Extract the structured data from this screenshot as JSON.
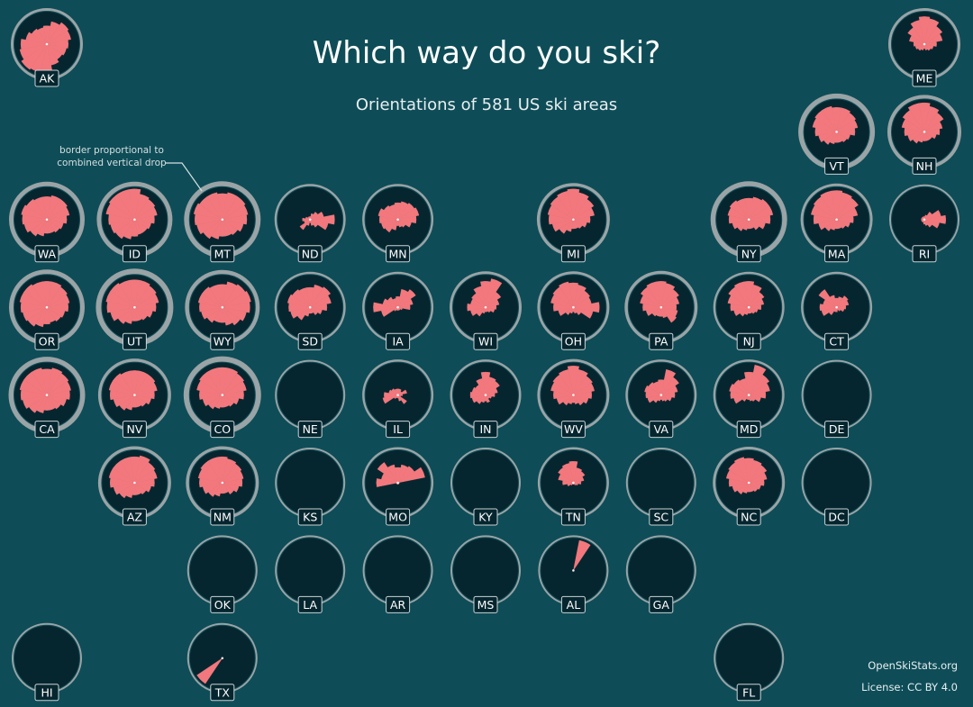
{
  "colors": {
    "background": "#0e4d57",
    "circle_fill": "#06262f",
    "rose_fill": "#f2787d",
    "border": "#9aa3a6",
    "text": "#ffffff",
    "label_box_fill": "#06262f",
    "label_box_stroke": "#c9d3d6",
    "annotation": "#d6dfe1"
  },
  "title": "Which way do you ski?",
  "subtitle": "Orientations of 581 US ski areas",
  "annotation": {
    "line1": "border proportional to",
    "line2": "combined vertical drop"
  },
  "footer": {
    "source": "OpenSkiStats.org",
    "license": "License: CC BY 4.0"
  },
  "chart_data": {
    "type": "polar-rose small multiples (tile grid map)",
    "bins": 16,
    "bin_order": "clockwise from north (N, NNE, NE, ... NNW)",
    "values_note": "relative petal length, 0-1, estimated from image",
    "states": [
      {
        "id": "AK",
        "col": 0,
        "row": 0,
        "border": 0.4,
        "rose": [
          0.6,
          0.75,
          0.85,
          0.8,
          0.7,
          0.65,
          0.6,
          0.7,
          0.85,
          0.95,
          1.0,
          0.9,
          0.85,
          0.7,
          0.6,
          0.55
        ]
      },
      {
        "id": "ME",
        "col": 10,
        "row": 0,
        "border": 0.4,
        "rose": [
          0.9,
          0.85,
          0.7,
          0.6,
          0.4,
          0.3,
          0.25,
          0.2,
          0.15,
          0.2,
          0.25,
          0.3,
          0.35,
          0.5,
          0.65,
          0.8
        ]
      },
      {
        "id": "VT",
        "col": 9,
        "row": 1,
        "border": 0.9,
        "rose": [
          0.8,
          0.8,
          0.75,
          0.7,
          0.6,
          0.45,
          0.4,
          0.35,
          0.35,
          0.4,
          0.5,
          0.6,
          0.7,
          0.8,
          0.85,
          0.85
        ]
      },
      {
        "id": "NH",
        "col": 10,
        "row": 1,
        "border": 0.6,
        "rose": [
          0.95,
          0.85,
          0.75,
          0.6,
          0.5,
          0.4,
          0.3,
          0.3,
          0.3,
          0.35,
          0.45,
          0.55,
          0.65,
          0.75,
          0.85,
          0.95
        ]
      },
      {
        "id": "WA",
        "col": 0,
        "row": 2,
        "border": 0.8,
        "rose": [
          0.75,
          0.8,
          0.8,
          0.75,
          0.65,
          0.55,
          0.5,
          0.45,
          0.45,
          0.55,
          0.65,
          0.75,
          0.8,
          0.85,
          0.8,
          0.75
        ]
      },
      {
        "id": "ID",
        "col": 1,
        "row": 2,
        "border": 0.8,
        "rose": [
          1.0,
          0.85,
          0.8,
          0.75,
          0.65,
          0.55,
          0.5,
          0.5,
          0.55,
          0.65,
          0.75,
          0.8,
          0.85,
          0.95,
          1.0,
          1.0
        ]
      },
      {
        "id": "MT",
        "col": 2,
        "row": 2,
        "border": 0.9,
        "rose": [
          0.85,
          0.9,
          0.9,
          0.85,
          0.8,
          0.7,
          0.6,
          0.55,
          0.55,
          0.65,
          0.75,
          0.85,
          0.9,
          0.95,
          0.9,
          0.9
        ]
      },
      {
        "id": "ND",
        "col": 3,
        "row": 2,
        "border": 0.3,
        "rose": [
          0.1,
          0.2,
          0.3,
          0.45,
          0.8,
          0.6,
          0.3,
          0.2,
          0.1,
          0.2,
          0.4,
          0.2,
          0.25,
          0.15,
          0.1,
          0.1
        ]
      },
      {
        "id": "MN",
        "col": 4,
        "row": 2,
        "border": 0.3,
        "rose": [
          0.55,
          0.6,
          0.65,
          0.7,
          0.6,
          0.45,
          0.3,
          0.25,
          0.2,
          0.35,
          0.5,
          0.55,
          0.6,
          0.65,
          0.55,
          0.5
        ]
      },
      {
        "id": "MI",
        "col": 6,
        "row": 2,
        "border": 0.5,
        "rose": [
          1.0,
          0.9,
          0.8,
          0.7,
          0.55,
          0.45,
          0.35,
          0.3,
          0.3,
          0.4,
          0.55,
          0.7,
          0.8,
          0.85,
          0.9,
          0.95
        ]
      },
      {
        "id": "NY",
        "col": 8,
        "row": 2,
        "border": 0.9,
        "rose": [
          0.7,
          0.75,
          0.8,
          0.8,
          0.7,
          0.55,
          0.4,
          0.3,
          0.3,
          0.35,
          0.45,
          0.55,
          0.65,
          0.7,
          0.75,
          0.7
        ]
      },
      {
        "id": "MA",
        "col": 9,
        "row": 2,
        "border": 0.4,
        "rose": [
          0.95,
          0.9,
          0.85,
          0.7,
          0.55,
          0.45,
          0.35,
          0.3,
          0.3,
          0.35,
          0.45,
          0.6,
          0.75,
          0.85,
          0.9,
          0.95
        ]
      },
      {
        "id": "RI",
        "col": 10,
        "row": 2,
        "border": 0.2,
        "rose": [
          0.1,
          0.15,
          0.3,
          0.55,
          0.7,
          0.5,
          0.3,
          0.2,
          0.15,
          0.1,
          0.1,
          0.1,
          0.1,
          0.1,
          0.1,
          0.1
        ]
      },
      {
        "id": "OR",
        "col": 0,
        "row": 3,
        "border": 0.8,
        "rose": [
          0.85,
          0.85,
          0.8,
          0.75,
          0.7,
          0.6,
          0.55,
          0.5,
          0.55,
          0.65,
          0.75,
          0.8,
          0.85,
          0.9,
          0.9,
          0.85
        ]
      },
      {
        "id": "UT",
        "col": 1,
        "row": 3,
        "border": 1.0,
        "rose": [
          0.9,
          0.9,
          0.85,
          0.8,
          0.7,
          0.6,
          0.5,
          0.45,
          0.45,
          0.55,
          0.65,
          0.8,
          0.9,
          0.95,
          0.95,
          0.9
        ]
      },
      {
        "id": "WY",
        "col": 2,
        "row": 3,
        "border": 0.7,
        "rose": [
          0.75,
          0.85,
          0.9,
          0.95,
          0.9,
          0.8,
          0.7,
          0.6,
          0.5,
          0.5,
          0.6,
          0.7,
          0.75,
          0.8,
          0.8,
          0.75
        ]
      },
      {
        "id": "SD",
        "col": 3,
        "row": 3,
        "border": 0.3,
        "rose": [
          0.65,
          0.75,
          0.8,
          0.7,
          0.55,
          0.4,
          0.3,
          0.2,
          0.2,
          0.3,
          0.5,
          0.65,
          0.7,
          0.75,
          0.7,
          0.65
        ]
      },
      {
        "id": "IA",
        "col": 4,
        "row": 3,
        "border": 0.3,
        "rose": [
          0.35,
          0.6,
          0.7,
          0.5,
          0.4,
          0.15,
          0.1,
          0.1,
          0.1,
          0.1,
          0.15,
          0.55,
          0.8,
          0.5,
          0.4,
          0.3
        ]
      },
      {
        "id": "WI",
        "col": 5,
        "row": 3,
        "border": 0.4,
        "rose": [
          0.85,
          0.95,
          0.6,
          0.45,
          0.35,
          0.3,
          0.2,
          0.15,
          0.15,
          0.2,
          0.35,
          0.5,
          0.6,
          0.5,
          0.55,
          0.7
        ]
      },
      {
        "id": "OH",
        "col": 6,
        "row": 3,
        "border": 0.4,
        "rose": [
          0.8,
          0.75,
          0.65,
          0.6,
          0.85,
          0.65,
          0.3,
          0.2,
          0.15,
          0.2,
          0.3,
          0.5,
          0.65,
          0.75,
          0.8,
          0.85
        ]
      },
      {
        "id": "PA",
        "col": 7,
        "row": 3,
        "border": 0.5,
        "rose": [
          0.85,
          0.8,
          0.7,
          0.6,
          0.5,
          0.55,
          0.6,
          0.35,
          0.3,
          0.3,
          0.35,
          0.5,
          0.6,
          0.7,
          0.8,
          0.85
        ]
      },
      {
        "id": "NJ",
        "col": 8,
        "row": 3,
        "border": 0.3,
        "rose": [
          0.85,
          0.75,
          0.6,
          0.5,
          0.4,
          0.3,
          0.25,
          0.2,
          0.2,
          0.25,
          0.35,
          0.5,
          0.6,
          0.7,
          0.8,
          0.85
        ]
      },
      {
        "id": "CT",
        "col": 9,
        "row": 3,
        "border": 0.3,
        "rose": [
          0.3,
          0.35,
          0.45,
          0.4,
          0.3,
          0.25,
          0.15,
          0.1,
          0.15,
          0.15,
          0.3,
          0.5,
          0.55,
          0.45,
          0.7,
          0.4
        ]
      },
      {
        "id": "CA",
        "col": 0,
        "row": 4,
        "border": 0.9,
        "rose": [
          0.85,
          0.9,
          0.85,
          0.8,
          0.75,
          0.65,
          0.55,
          0.5,
          0.5,
          0.6,
          0.7,
          0.8,
          0.85,
          0.9,
          0.9,
          0.9
        ]
      },
      {
        "id": "NV",
        "col": 1,
        "row": 4,
        "border": 0.5,
        "rose": [
          0.8,
          0.8,
          0.8,
          0.75,
          0.65,
          0.55,
          0.45,
          0.4,
          0.4,
          0.5,
          0.6,
          0.7,
          0.8,
          0.85,
          0.85,
          0.8
        ]
      },
      {
        "id": "CO",
        "col": 2,
        "row": 4,
        "border": 1.0,
        "rose": [
          0.9,
          0.9,
          0.85,
          0.8,
          0.7,
          0.55,
          0.45,
          0.4,
          0.4,
          0.45,
          0.55,
          0.65,
          0.75,
          0.85,
          0.9,
          0.9
        ]
      },
      {
        "id": "NE",
        "col": 3,
        "row": 4,
        "border": 0.2,
        "rose": []
      },
      {
        "id": "IL",
        "col": 4,
        "row": 4,
        "border": 0.3,
        "rose": [
          0.2,
          0.2,
          0.15,
          0.3,
          0.15,
          0.1,
          0.35,
          0.2,
          0.1,
          0.1,
          0.15,
          0.5,
          0.45,
          0.3,
          0.25,
          0.2
        ]
      },
      {
        "id": "IN",
        "col": 5,
        "row": 4,
        "border": 0.3,
        "rose": [
          0.75,
          0.6,
          0.55,
          0.4,
          0.3,
          0.2,
          0.15,
          0.25,
          0.2,
          0.25,
          0.35,
          0.45,
          0.5,
          0.45,
          0.4,
          0.55
        ]
      },
      {
        "id": "WV",
        "col": 6,
        "row": 4,
        "border": 0.4,
        "rose": [
          0.95,
          0.85,
          0.75,
          0.7,
          0.6,
          0.5,
          0.4,
          0.3,
          0.25,
          0.3,
          0.4,
          0.55,
          0.65,
          0.75,
          0.8,
          0.85
        ]
      },
      {
        "id": "VA",
        "col": 7,
        "row": 4,
        "border": 0.3,
        "rose": [
          0.5,
          0.85,
          0.7,
          0.55,
          0.45,
          0.35,
          0.25,
          0.2,
          0.15,
          0.2,
          0.3,
          0.45,
          0.5,
          0.55,
          0.5,
          0.45
        ]
      },
      {
        "id": "MD",
        "col": 8,
        "row": 4,
        "border": 0.3,
        "rose": [
          0.75,
          1.0,
          0.8,
          0.7,
          0.55,
          0.4,
          0.25,
          0.2,
          0.15,
          0.15,
          0.25,
          0.5,
          0.6,
          0.65,
          0.6,
          0.55
        ]
      },
      {
        "id": "DE",
        "col": 9,
        "row": 4,
        "border": 0.2,
        "rose": []
      },
      {
        "id": "AZ",
        "col": 1,
        "row": 5,
        "border": 0.5,
        "rose": [
          0.85,
          0.9,
          0.8,
          0.75,
          0.65,
          0.55,
          0.45,
          0.4,
          0.4,
          0.5,
          0.6,
          0.7,
          0.8,
          0.85,
          0.85,
          0.85
        ]
      },
      {
        "id": "NM",
        "col": 2,
        "row": 5,
        "border": 0.5,
        "rose": [
          0.85,
          0.8,
          0.75,
          0.7,
          0.65,
          0.55,
          0.45,
          0.35,
          0.35,
          0.45,
          0.55,
          0.65,
          0.75,
          0.8,
          0.85,
          0.85
        ]
      },
      {
        "id": "KS",
        "col": 3,
        "row": 5,
        "border": 0.2,
        "rose": []
      },
      {
        "id": "MO",
        "col": 4,
        "row": 5,
        "border": 0.3,
        "rose": [
          0.5,
          0.6,
          0.65,
          0.9,
          0.05,
          0.05,
          0.05,
          0.05,
          0.05,
          0.05,
          0.05,
          0.05,
          0.7,
          0.55,
          0.8,
          0.6
        ]
      },
      {
        "id": "KY",
        "col": 5,
        "row": 5,
        "border": 0.2,
        "rose": []
      },
      {
        "id": "TN",
        "col": 6,
        "row": 5,
        "border": 0.3,
        "rose": [
          0.7,
          0.5,
          0.45,
          0.35,
          0.25,
          0.15,
          0.1,
          0.05,
          0.05,
          0.05,
          0.1,
          0.2,
          0.35,
          0.5,
          0.6,
          0.65
        ]
      },
      {
        "id": "SC",
        "col": 7,
        "row": 5,
        "border": 0.2,
        "rose": []
      },
      {
        "id": "NC",
        "col": 8,
        "row": 5,
        "border": 0.4,
        "rose": [
          0.8,
          0.75,
          0.7,
          0.6,
          0.5,
          0.4,
          0.35,
          0.3,
          0.3,
          0.35,
          0.45,
          0.55,
          0.65,
          0.75,
          0.8,
          0.85
        ]
      },
      {
        "id": "DC",
        "col": 9,
        "row": 5,
        "border": 0.2,
        "rose": []
      },
      {
        "id": "OK",
        "col": 2,
        "row": 6,
        "border": 0.2,
        "rose": []
      },
      {
        "id": "LA",
        "col": 3,
        "row": 6,
        "border": 0.2,
        "rose": []
      },
      {
        "id": "AR",
        "col": 4,
        "row": 6,
        "border": 0.2,
        "rose": []
      },
      {
        "id": "MS",
        "col": 5,
        "row": 6,
        "border": 0.2,
        "rose": []
      },
      {
        "id": "AL",
        "col": 6,
        "row": 6,
        "border": 0.2,
        "rose": [
          0,
          1.0,
          0,
          0,
          0,
          0,
          0,
          0,
          0,
          0,
          0,
          0,
          0,
          0,
          0,
          0
        ]
      },
      {
        "id": "GA",
        "col": 7,
        "row": 6,
        "border": 0.2,
        "rose": []
      },
      {
        "id": "HI",
        "col": 0,
        "row": 7,
        "border": 0.2,
        "rose": []
      },
      {
        "id": "TX",
        "col": 2,
        "row": 7,
        "border": 0.2,
        "rose": [
          0,
          0,
          0,
          0,
          0,
          0,
          0,
          0,
          0,
          0,
          1.0,
          0,
          0,
          0,
          0,
          0
        ]
      },
      {
        "id": "FL",
        "col": 8,
        "row": 7,
        "border": 0.2,
        "rose": []
      }
    ]
  }
}
